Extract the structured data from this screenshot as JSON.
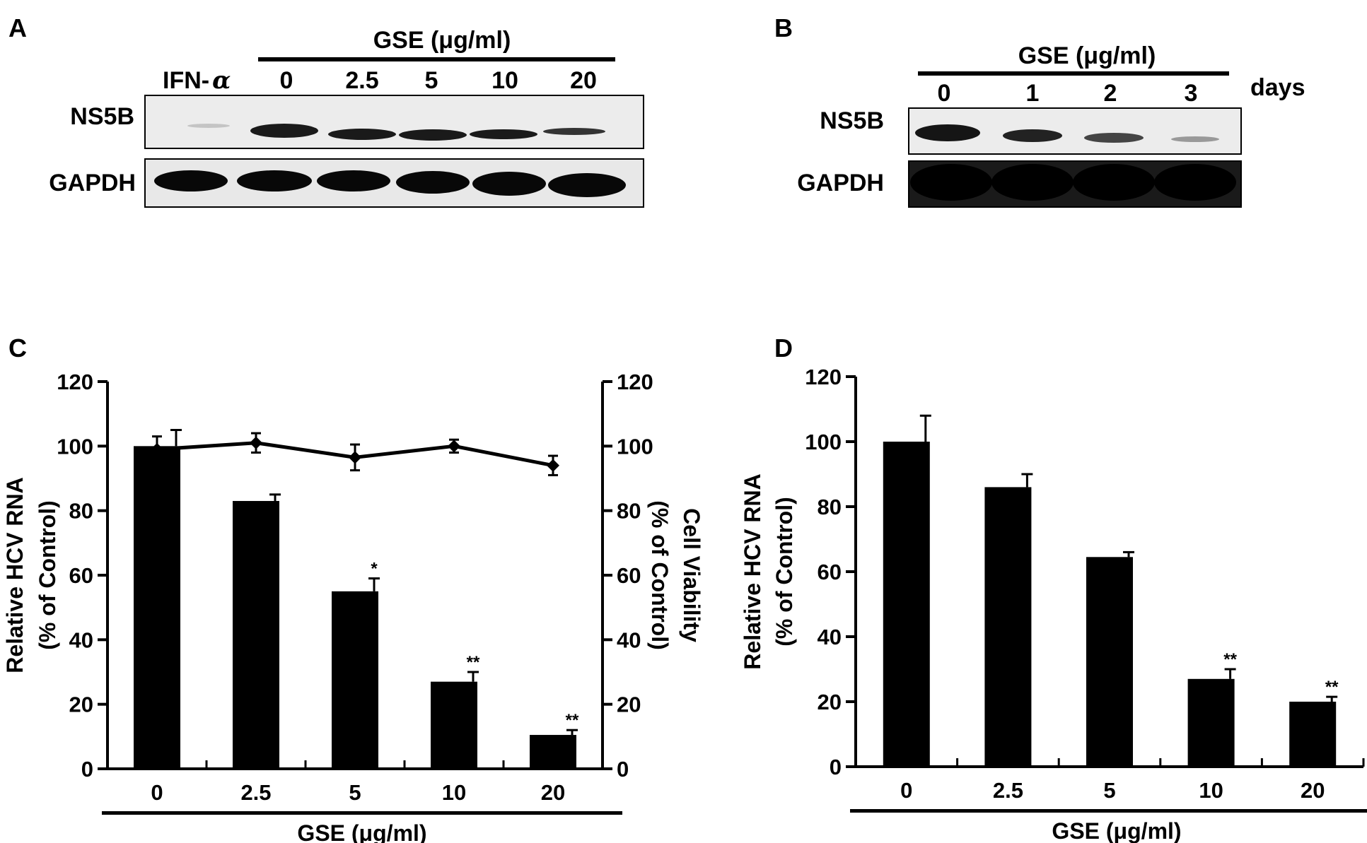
{
  "panels": {
    "A": {
      "letter": "A",
      "group_label": "GSE (μg/ml)",
      "control_label": "IFN-",
      "control_greek": "α",
      "lanes": [
        "0",
        "2.5",
        "5",
        "10",
        "20"
      ],
      "row_labels": [
        "NS5B",
        "GAPDH"
      ]
    },
    "B": {
      "letter": "B",
      "group_label": "GSE (μg/ml)",
      "lanes": [
        "0",
        "1",
        "2",
        "3"
      ],
      "unit_label": "days",
      "row_labels": [
        "NS5B",
        "GAPDH"
      ]
    },
    "C": {
      "letter": "C"
    },
    "D": {
      "letter": "D"
    }
  },
  "chart_data": [
    {
      "panel": "C",
      "type": "bar",
      "categories": [
        "0",
        "2.5",
        "5",
        "10",
        "20"
      ],
      "xlabel": "GSE (μg/ml)",
      "ylabel": [
        "Relative HCV RNA",
        "(% of Control)"
      ],
      "ylim": [
        0,
        120
      ],
      "yticks": [
        "0",
        "20",
        "40",
        "60",
        "80",
        "100",
        "120"
      ],
      "bars": {
        "values": [
          100,
          83,
          55,
          27,
          10.5
        ],
        "errors": [
          5,
          2,
          4,
          3,
          1.5
        ]
      },
      "significance": [
        "",
        "",
        "*",
        "**",
        "**"
      ],
      "secondary": {
        "type": "line",
        "ylabel": [
          "Cell Viability",
          "(% of Control)"
        ],
        "ylim": [
          0,
          120
        ],
        "yticks": [
          "0",
          "20",
          "40",
          "60",
          "80",
          "100",
          "120"
        ],
        "values": [
          99,
          101,
          96.5,
          100,
          94
        ],
        "errors": [
          4,
          3,
          4,
          2,
          3
        ]
      },
      "grid": false
    },
    {
      "panel": "D",
      "type": "bar",
      "categories": [
        "0",
        "2.5",
        "5",
        "10",
        "20"
      ],
      "xlabel": "GSE (μg/ml)",
      "ylabel": [
        "Relative HCV RNA",
        "(% of Control)"
      ],
      "ylim": [
        0,
        120
      ],
      "yticks": [
        "0",
        "20",
        "40",
        "60",
        "80",
        "100",
        "120"
      ],
      "bars": {
        "values": [
          100,
          86,
          64.5,
          27,
          20
        ],
        "errors": [
          8,
          4,
          1.5,
          3,
          1.5
        ]
      },
      "significance": [
        "",
        "",
        "",
        "**",
        "**"
      ],
      "grid": false
    }
  ]
}
